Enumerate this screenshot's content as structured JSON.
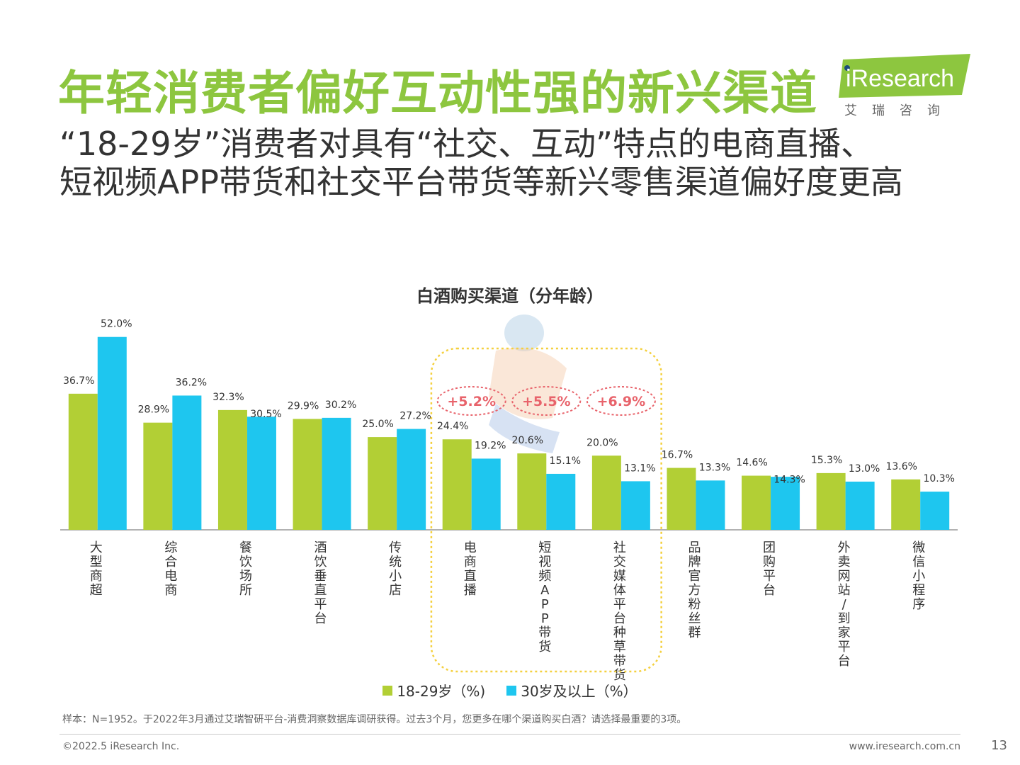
{
  "header": {
    "title": "年轻消费者偏好互动性强的新兴渠道",
    "subtitle_line1": "“18-29岁”消费者对具有“社交、互动”特点的电商直播、",
    "subtitle_line2": "短视频APP带货和社交平台带货等新兴零售渠道偏好度更高",
    "logo_text": "iResearch",
    "logo_cn": "艾瑞咨询"
  },
  "colors": {
    "title_green": "#8dc63f",
    "series_green": "#b2cf35",
    "series_blue": "#1ec6ef",
    "highlight_box": "#f4d03f",
    "highlight_text": "#e8636b"
  },
  "chart_data": {
    "type": "bar",
    "title": "白酒购买渠道（分年龄）",
    "categories": [
      "大型商超",
      "综合电商",
      "餐饮场所",
      "酒饮垂直平台",
      "传统小店",
      "电商直播",
      "短视频APP带货",
      "社交媒体平台种草带货",
      "品牌官方粉丝群",
      "团购平台",
      "外卖网站/到家平台",
      "微信小程序"
    ],
    "series": [
      {
        "name": "18-29岁（%)",
        "values": [
          36.7,
          28.9,
          32.3,
          29.9,
          25.0,
          24.4,
          20.6,
          20.0,
          16.7,
          14.6,
          15.3,
          13.6
        ]
      },
      {
        "name": "30岁及以上（%）",
        "values": [
          52.0,
          36.2,
          30.5,
          30.2,
          27.2,
          19.2,
          15.1,
          13.1,
          13.3,
          14.3,
          13.0,
          10.3
        ]
      }
    ],
    "value_labels": {
      "series0": [
        "36.7%",
        "28.9%",
        "32.3%",
        "29.9%",
        "25.0%",
        "24.4%",
        "20.6%",
        "20.0%",
        "16.7%",
        "14.6%",
        "15.3%",
        "13.6%"
      ],
      "series1": [
        "52.0%",
        "36.2%",
        "30.5%",
        "30.2%",
        "27.2%",
        "19.2%",
        "15.1%",
        "13.1%",
        "13.3%",
        "14.3%",
        "13.0%",
        "10.3%"
      ]
    },
    "highlights": [
      {
        "category": "电商直播",
        "label": "+5.2%"
      },
      {
        "category": "短视频APP带货",
        "label": "+5.5%"
      },
      {
        "category": "社交媒体平台种草带货",
        "label": "+6.9%"
      }
    ],
    "ylim": [
      0,
      55
    ],
    "legend_position": "bottom",
    "grid": false
  },
  "footer": {
    "note": "样本：N=1952。于2022年3月通过艾瑞智研平台-消费洞察数据库调研获得。过去3个月，您更多在哪个渠道购买白酒？请选择最重要的3项。",
    "copyright": "©2022.5 iResearch Inc.",
    "website": "www.iresearch.com.cn",
    "page": "13"
  }
}
